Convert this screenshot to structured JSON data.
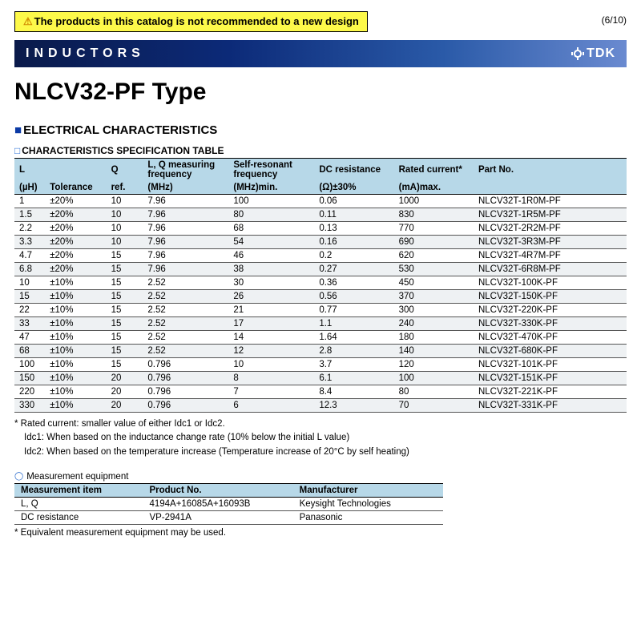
{
  "warning_text": "The products in this catalog is not recommended to a new design",
  "page_counter": "(6/10)",
  "banner_label": "INDUCTORS",
  "brand": "TDK",
  "title": "NLCV32-PF Type",
  "section_heading": "ELECTRICAL CHARACTERISTICS",
  "subsection_heading": "CHARACTERISTICS SPECIFICATION TABLE",
  "spec_table": {
    "header_row1": [
      "L",
      "",
      "Q",
      "L, Q measuring frequency",
      "Self-resonant frequency",
      "DC resistance",
      "Rated current*",
      "Part No."
    ],
    "header_row2": [
      "(µH)",
      "Tolerance",
      "ref.",
      "(MHz)",
      "(MHz)min.",
      "(Ω)±30%",
      "(mA)max.",
      ""
    ],
    "rows": [
      [
        "1",
        "±20%",
        "10",
        "7.96",
        "100",
        "0.06",
        "1000",
        "NLCV32T-1R0M-PF"
      ],
      [
        "1.5",
        "±20%",
        "10",
        "7.96",
        "80",
        "0.11",
        "830",
        "NLCV32T-1R5M-PF"
      ],
      [
        "2.2",
        "±20%",
        "10",
        "7.96",
        "68",
        "0.13",
        "770",
        "NLCV32T-2R2M-PF"
      ],
      [
        "3.3",
        "±20%",
        "10",
        "7.96",
        "54",
        "0.16",
        "690",
        "NLCV32T-3R3M-PF"
      ],
      [
        "4.7",
        "±20%",
        "15",
        "7.96",
        "46",
        "0.2",
        "620",
        "NLCV32T-4R7M-PF"
      ],
      [
        "6.8",
        "±20%",
        "15",
        "7.96",
        "38",
        "0.27",
        "530",
        "NLCV32T-6R8M-PF"
      ],
      [
        "10",
        "±10%",
        "15",
        "2.52",
        "30",
        "0.36",
        "450",
        "NLCV32T-100K-PF"
      ],
      [
        "15",
        "±10%",
        "15",
        "2.52",
        "26",
        "0.56",
        "370",
        "NLCV32T-150K-PF"
      ],
      [
        "22",
        "±10%",
        "15",
        "2.52",
        "21",
        "0.77",
        "300",
        "NLCV32T-220K-PF"
      ],
      [
        "33",
        "±10%",
        "15",
        "2.52",
        "17",
        "1.1",
        "240",
        "NLCV32T-330K-PF"
      ],
      [
        "47",
        "±10%",
        "15",
        "2.52",
        "14",
        "1.64",
        "180",
        "NLCV32T-470K-PF"
      ],
      [
        "68",
        "±10%",
        "15",
        "2.52",
        "12",
        "2.8",
        "140",
        "NLCV32T-680K-PF"
      ],
      [
        "100",
        "±10%",
        "15",
        "0.796",
        "10",
        "3.7",
        "120",
        "NLCV32T-101K-PF"
      ],
      [
        "150",
        "±10%",
        "20",
        "0.796",
        "8",
        "6.1",
        "100",
        "NLCV32T-151K-PF"
      ],
      [
        "220",
        "±10%",
        "20",
        "0.796",
        "7",
        "8.4",
        "80",
        "NLCV32T-221K-PF"
      ],
      [
        "330",
        "±10%",
        "20",
        "0.796",
        "6",
        "12.3",
        "70",
        "NLCV32T-331K-PF"
      ]
    ],
    "col_widths_pct": [
      5,
      10,
      6,
      14,
      14,
      13,
      13,
      25
    ],
    "header_bg": "#b7d8e8",
    "row_alt_bg": "#eef1f3",
    "border_color": "#555555",
    "font_size_pt": 9
  },
  "footnote_lead": "* Rated current: smaller value of either Idc1 or Idc2.",
  "footnote_idc1": "Idc1: When based on the inductance change rate (10% below the initial L value)",
  "footnote_idc2": "Idc2: When based on the temperature increase (Temperature increase of 20°C by self heating)",
  "meas_heading": "Measurement equipment",
  "meas_table": {
    "columns": [
      "Measurement item",
      "Product No.",
      "Manufacturer"
    ],
    "rows": [
      [
        "L, Q",
        "4194A+16085A+16093B",
        "Keysight Technologies"
      ],
      [
        "DC resistance",
        "VP-2941A",
        "Panasonic"
      ]
    ],
    "col_widths_pct": [
      30,
      35,
      35
    ],
    "header_bg": "#b7d8e8",
    "font_size_pt": 9
  },
  "meas_note": "* Equivalent measurement equipment may be used.",
  "colors": {
    "warning_bg": "#fdf94a",
    "banner_gradient_from": "#0a1a4a",
    "banner_gradient_to": "#6a8ad0",
    "accent_blue": "#0b3aa5",
    "light_blue": "#2a6fd6"
  }
}
